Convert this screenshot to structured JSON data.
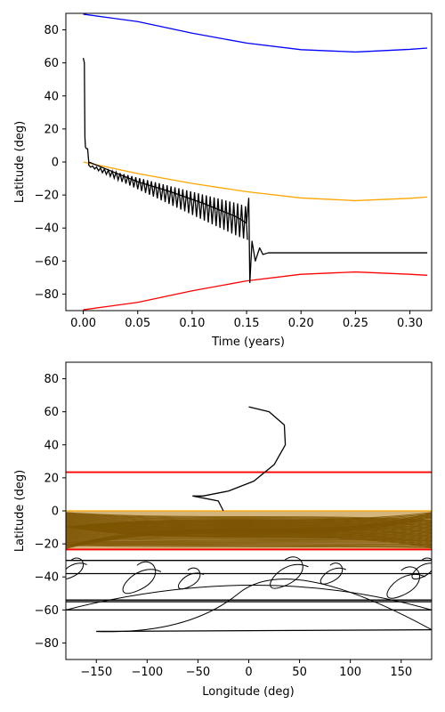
{
  "chart_data": [
    {
      "type": "line",
      "xlabel": "Time (years)",
      "ylabel": "Latitude (deg)",
      "xlim": [
        -0.016,
        0.32
      ],
      "ylim": [
        -90,
        90
      ],
      "xticks": [
        0.0,
        0.05,
        0.1,
        0.15,
        0.2,
        0.25,
        0.3
      ],
      "xtick_labels": [
        "0.00",
        "0.05",
        "0.10",
        "0.15",
        "0.20",
        "0.25",
        "0.30"
      ],
      "yticks": [
        -80,
        -60,
        -40,
        -20,
        0,
        20,
        40,
        60,
        80
      ],
      "ytick_labels": [
        "−80",
        "−60",
        "−40",
        "−20",
        "0",
        "20",
        "40",
        "60",
        "80"
      ],
      "grid": false,
      "series": [
        {
          "color": "#0000ff",
          "x": [
            0,
            0.05,
            0.1,
            0.15,
            0.2,
            0.25,
            0.3,
            0.316
          ],
          "y": [
            89.5,
            85,
            78,
            72,
            68,
            66.6,
            68.2,
            69
          ]
        },
        {
          "color": "#ffa500",
          "x": [
            0,
            0.05,
            0.1,
            0.15,
            0.2,
            0.25,
            0.3,
            0.316
          ],
          "y": [
            0,
            -7,
            -13,
            -18,
            -21.8,
            -23.4,
            -22,
            -21.2
          ]
        },
        {
          "color": "#ff0000",
          "x": [
            0,
            0.05,
            0.1,
            0.15,
            0.2,
            0.25,
            0.3,
            0.316
          ],
          "y": [
            -89.5,
            -85,
            -78,
            -72,
            -68,
            -66.6,
            -68,
            -68.6
          ]
        },
        {
          "color": "#000000",
          "x": [
            0,
            0.001,
            0.0015,
            0.002,
            0.003,
            0.004,
            0.005,
            0.02,
            0.05,
            0.08,
            0.11,
            0.14,
            0.15,
            0.152,
            0.153,
            0.155,
            0.158,
            0.162,
            0.165,
            0.17,
            0.2,
            0.25,
            0.3,
            0.316
          ],
          "y": [
            63,
            60,
            15,
            9,
            8,
            8,
            0,
            -4,
            -12,
            -18,
            -25,
            -33,
            -37,
            -22,
            -73,
            -48,
            -60,
            -52,
            -56,
            -55,
            -55,
            -55,
            -55,
            -55
          ]
        }
      ]
    },
    {
      "type": "line",
      "xlabel": "Longitude (deg)",
      "ylabel": "Latitude (deg)",
      "xlim": [
        -180,
        180
      ],
      "ylim": [
        -90,
        90
      ],
      "xticks": [
        -150,
        -100,
        -50,
        0,
        50,
        100,
        150
      ],
      "xtick_labels": [
        "−150",
        "−100",
        "−50",
        "0",
        "50",
        "100",
        "150"
      ],
      "yticks": [
        -80,
        -60,
        -40,
        -20,
        0,
        20,
        40,
        60,
        80
      ],
      "ytick_labels": [
        "−80",
        "−60",
        "−40",
        "−20",
        "0",
        "20",
        "40",
        "60",
        "80"
      ],
      "grid": false,
      "series": [
        {
          "color": "#ff0000",
          "x": [
            -180,
            180
          ],
          "y": [
            23.4,
            23.4
          ]
        },
        {
          "color": "#ff0000",
          "x": [
            -180,
            180
          ],
          "y": [
            -23.4,
            -23.4
          ]
        },
        {
          "color": "#ffa500",
          "x": [
            -180,
            180
          ],
          "y": [
            0,
            0
          ]
        },
        {
          "color": "#000000",
          "x": [
            0,
            20,
            35,
            36,
            25,
            5,
            -20,
            -45,
            -55,
            -30,
            -25
          ],
          "y": [
            63,
            60,
            52,
            40,
            28,
            18,
            12,
            9,
            9,
            6,
            0
          ]
        },
        {
          "color": "#000000",
          "x": [
            -180,
            180
          ],
          "y": [
            -55,
            -55
          ]
        },
        {
          "color": "#000000",
          "x": [
            -180,
            180
          ],
          "y": [
            -54,
            -54
          ]
        },
        {
          "color": "#000000",
          "x": [
            -180,
            180
          ],
          "y": [
            -60,
            -60
          ]
        },
        {
          "color": "#000000",
          "x": [
            -180,
            180
          ],
          "y": [
            -30,
            -30
          ]
        },
        {
          "color": "#000000",
          "x": [
            -180,
            180
          ],
          "y": [
            -38,
            -38
          ]
        },
        {
          "color": "#000000",
          "x": [
            -150,
            180
          ],
          "y": [
            -73,
            -72
          ]
        }
      ]
    }
  ]
}
